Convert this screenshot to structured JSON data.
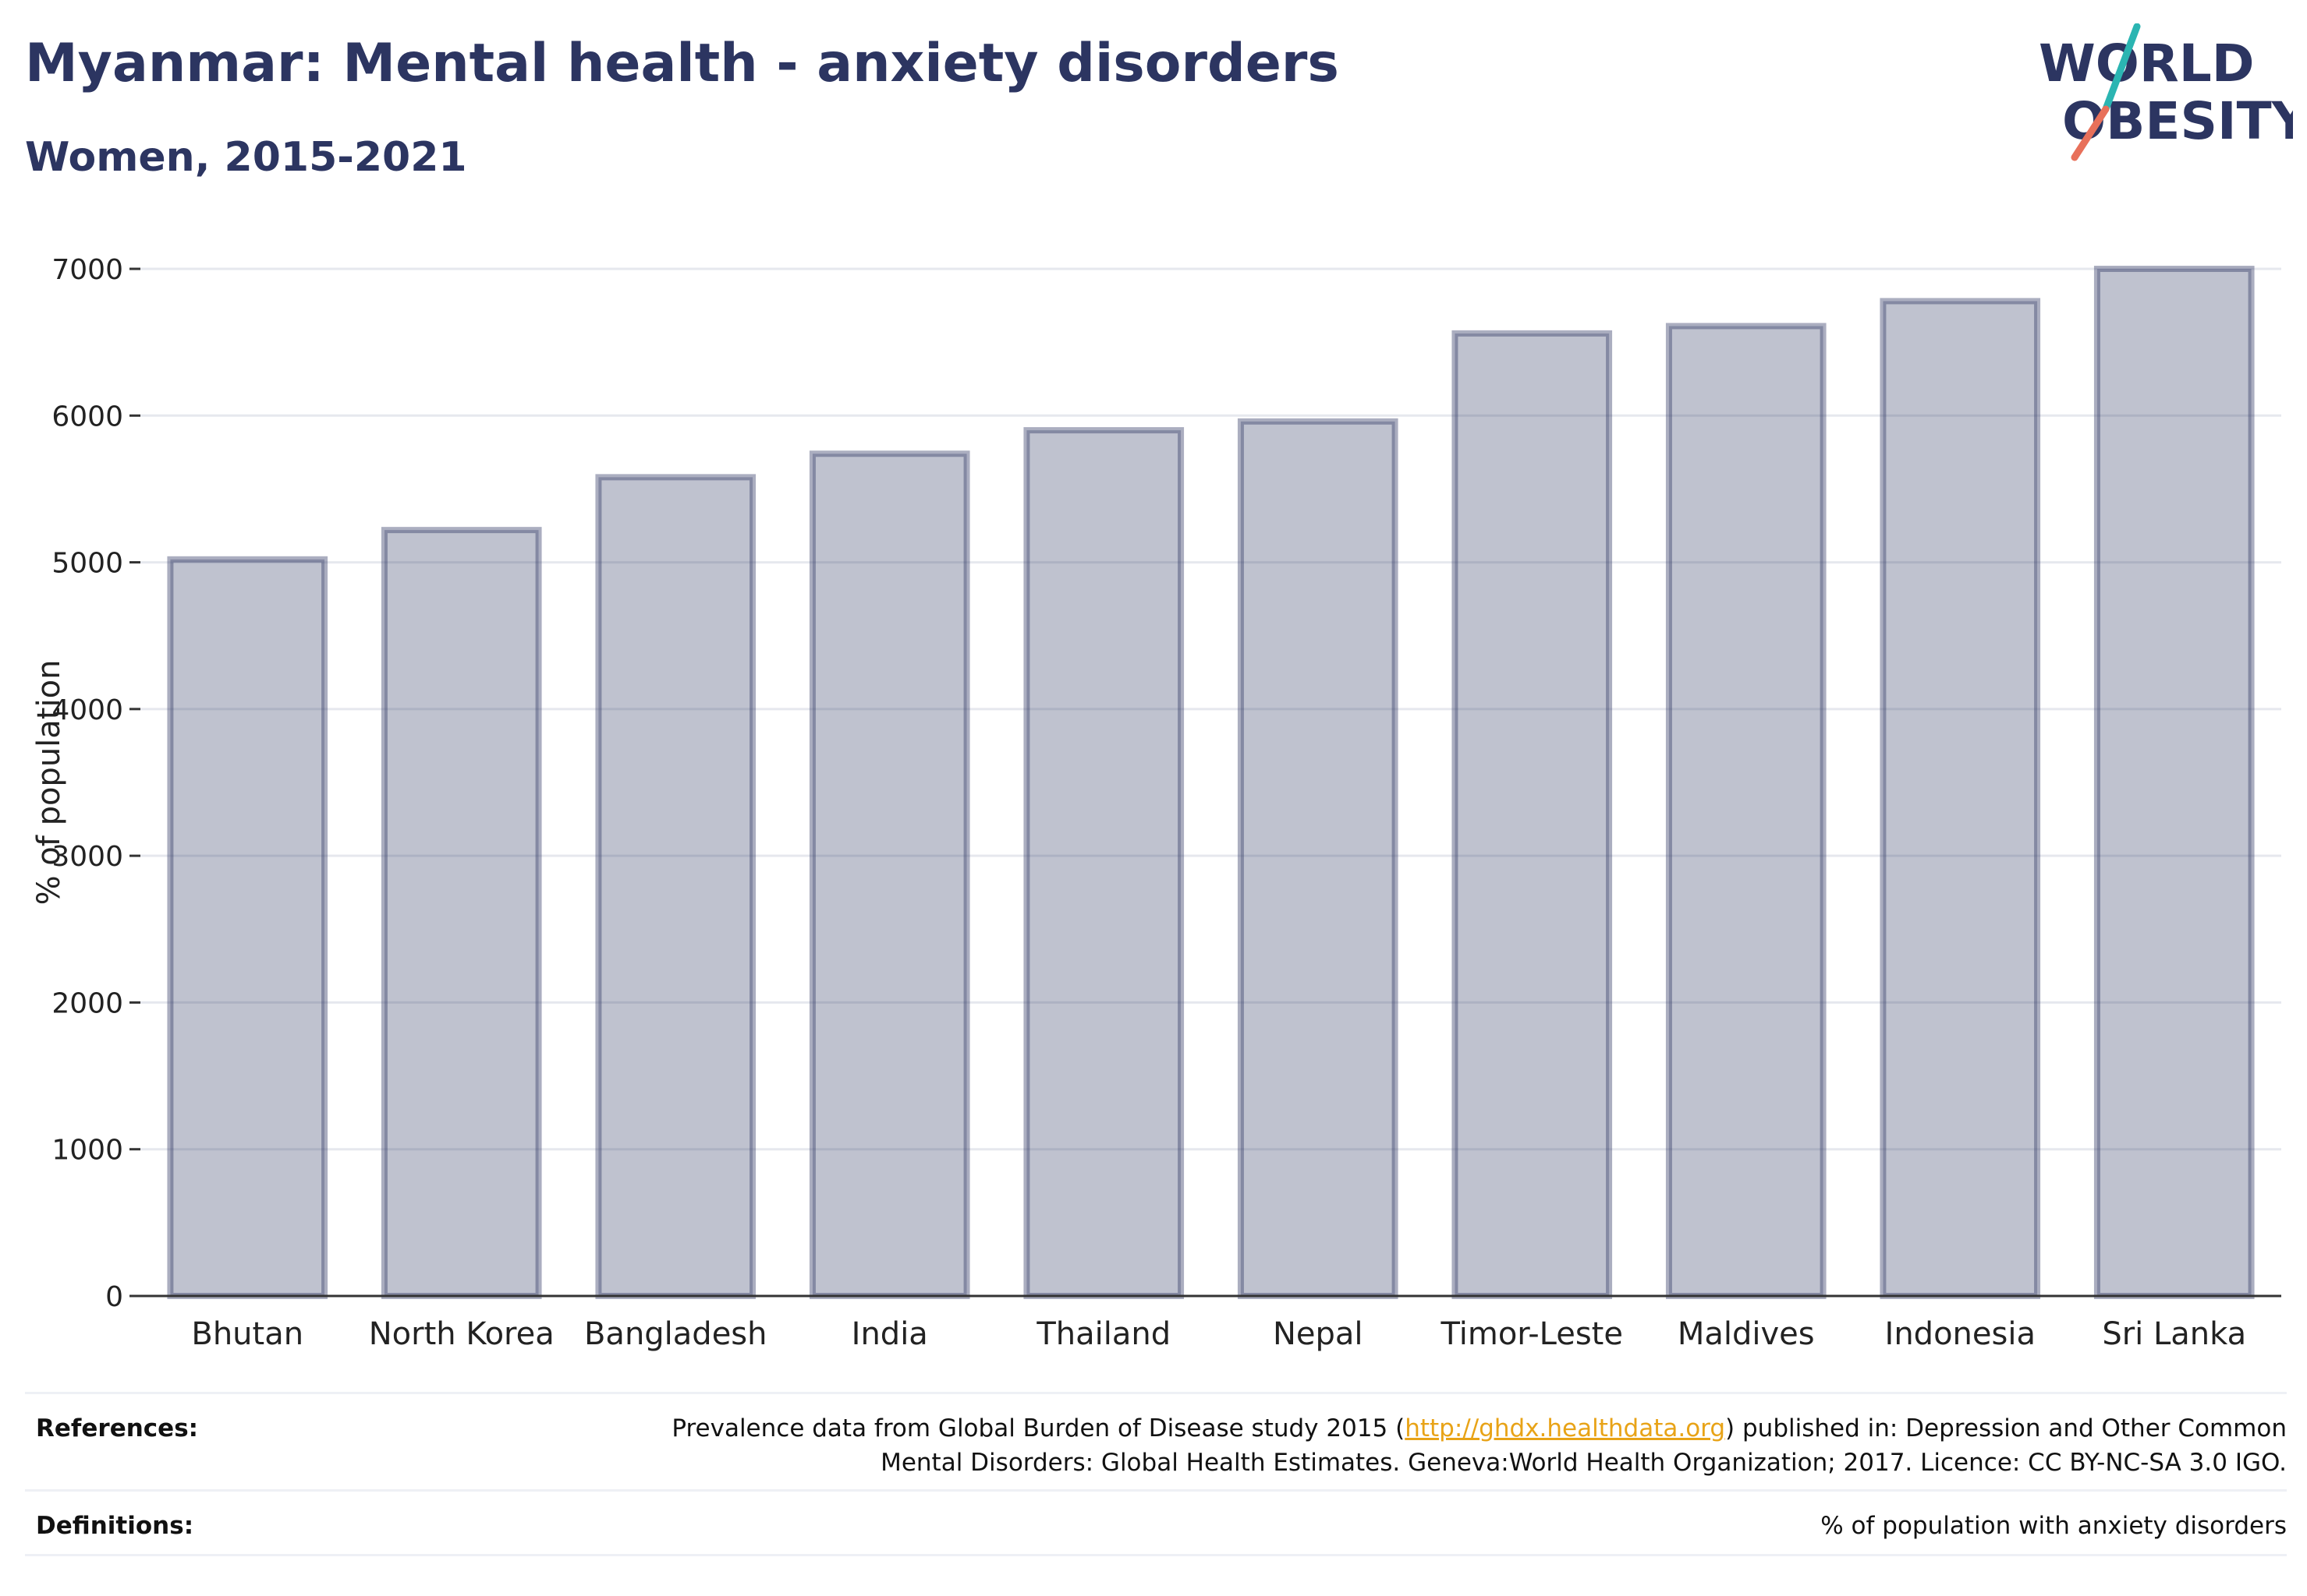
{
  "header": {
    "title": "Myanmar: Mental health - anxiety disorders",
    "subtitle": "Women, 2015-2021"
  },
  "logo": {
    "line1": "WORLD",
    "line2": "OBESITY",
    "accent_colors": [
      "#2bb5b2",
      "#e8705a"
    ],
    "text_color": "#2c3561"
  },
  "chart_data": {
    "type": "bar",
    "categories": [
      "Bhutan",
      "North Korea",
      "Bangladesh",
      "India",
      "Thailand",
      "Nepal",
      "Timor-Leste",
      "Maldives",
      "Indonesia",
      "Sri Lanka"
    ],
    "values": [
      5020,
      5220,
      5580,
      5740,
      5900,
      5960,
      6560,
      6610,
      6780,
      7000
    ],
    "title": "",
    "xlabel": "",
    "ylabel": "% of population",
    "ylim": [
      0,
      7000
    ],
    "yticks": [
      0,
      1000,
      2000,
      3000,
      4000,
      5000,
      6000,
      7000
    ],
    "grid": true,
    "bar_color": "#2c3561"
  },
  "footer": {
    "references_label": "References:",
    "references_line1_pre": "Prevalence data from Global Burden of Disease study 2015 (",
    "references_link": "http://ghdx.healthdata.org",
    "references_line1_post": ") published in: Depression and Other Common",
    "references_line2": "Mental Disorders: Global Health Estimates. Geneva:World Health Organization; 2017. Licence: CC BY-NC-SA 3.0 IGO.",
    "definitions_label": "Definitions:",
    "definitions_text": "% of population with anxiety disorders"
  }
}
